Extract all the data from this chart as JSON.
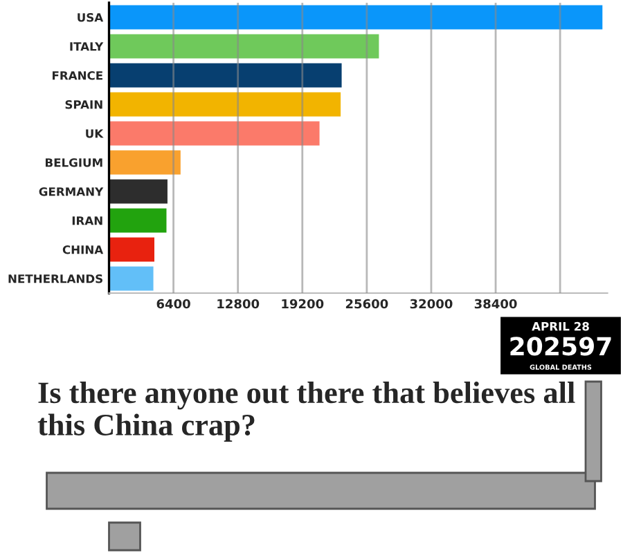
{
  "chart_data": {
    "type": "bar",
    "orientation": "horizontal",
    "categories": [
      "USA",
      "ITALY",
      "FRANCE",
      "SPAIN",
      "UK",
      "BELGIUM",
      "GERMANY",
      "IRAN",
      "CHINA",
      "NETHERLANDS"
    ],
    "values": [
      49100,
      26900,
      23200,
      23100,
      21000,
      7200,
      5900,
      5800,
      4600,
      4500
    ],
    "colors": [
      "#0a96fa",
      "#6fc95b",
      "#073f70",
      "#f2b400",
      "#fb7a6a",
      "#f9a12e",
      "#2d2d2d",
      "#22a30e",
      "#e8220f",
      "#62bff8"
    ],
    "xlim": [
      0,
      49500
    ],
    "xticks": [
      6400,
      12800,
      19200,
      25600,
      32000,
      38400,
      {
        "value": 44800,
        "label": null
      }
    ],
    "grid": "x",
    "annotations": [
      "APRIL 28",
      "202597",
      "GLOBAL DEATHS",
      "Is there anyone out there that believes all this China crap?"
    ]
  }
}
